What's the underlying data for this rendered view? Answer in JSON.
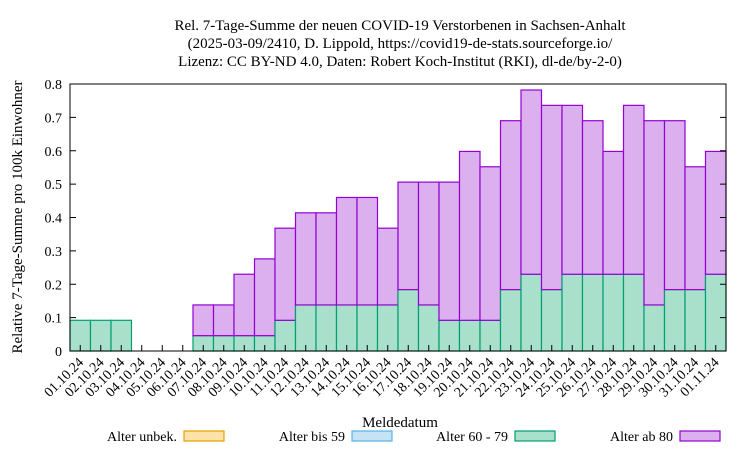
{
  "chart_data": {
    "type": "bar",
    "stacked": true,
    "title_lines": [
      "Rel. 7-Tage-Summe der neuen COVID-19 Verstorbenen in Sachsen-Anhalt",
      "(2025-03-09/2410, D. Lippold, https://covid19-de-stats.sourceforge.io/",
      "Lizenz: CC BY-ND 4.0, Daten: Robert Koch-Institut (RKI), dl-de/by-2-0)"
    ],
    "xlabel": "Meldedatum",
    "ylabel": "Relative 7-Tage-Summe pro 100k Einwohner",
    "ylim": [
      0,
      0.8
    ],
    "yticks": [
      "0",
      "0.1",
      "0.2",
      "0.3",
      "0.4",
      "0.5",
      "0.6",
      "0.7",
      "0.8"
    ],
    "categories": [
      "01.10.24",
      "02.10.24",
      "03.10.24",
      "04.10.24",
      "05.10.24",
      "06.10.24",
      "07.10.24",
      "08.10.24",
      "09.10.24",
      "10.10.24",
      "11.10.24",
      "12.10.24",
      "13.10.24",
      "14.10.24",
      "15.10.24",
      "16.10.24",
      "17.10.24",
      "18.10.24",
      "19.10.24",
      "20.10.24",
      "21.10.24",
      "22.10.24",
      "23.10.24",
      "24.10.24",
      "25.10.24",
      "26.10.24",
      "27.10.24",
      "28.10.24",
      "29.10.24",
      "30.10.24",
      "31.10.24",
      "01.11.24"
    ],
    "series": [
      {
        "name": "Alter unbek.",
        "color": "#fce2a6",
        "stroke": "#e69f00",
        "values": [
          0,
          0,
          0,
          0,
          0,
          0,
          0,
          0,
          0,
          0,
          0,
          0,
          0,
          0,
          0,
          0,
          0,
          0,
          0,
          0,
          0,
          0,
          0,
          0,
          0,
          0,
          0,
          0,
          0,
          0,
          0,
          0
        ]
      },
      {
        "name": "Alter bis 59",
        "color": "#c6e3f5",
        "stroke": "#56b4e9",
        "values": [
          0,
          0,
          0,
          0,
          0,
          0,
          0,
          0,
          0,
          0,
          0,
          0,
          0,
          0,
          0,
          0,
          0,
          0,
          0,
          0,
          0,
          0,
          0,
          0,
          0,
          0,
          0,
          0,
          0,
          0,
          0,
          0
        ]
      },
      {
        "name": "Alter 60 - 79",
        "color": "#a8e0cc",
        "stroke": "#009e73",
        "values": [
          0.092,
          0.092,
          0.092,
          0,
          0,
          0,
          0.046,
          0.046,
          0.046,
          0.046,
          0.092,
          0.138,
          0.138,
          0.138,
          0.138,
          0.138,
          0.184,
          0.138,
          0.092,
          0.092,
          0.092,
          0.184,
          0.23,
          0.184,
          0.23,
          0.23,
          0.23,
          0.23,
          0.138,
          0.184,
          0.184,
          0.23
        ]
      },
      {
        "name": "Alter ab 80",
        "color": "#dcb0ef",
        "stroke": "#9400d3",
        "values": [
          0,
          0,
          0,
          0,
          0,
          0,
          0.092,
          0.092,
          0.184,
          0.23,
          0.276,
          0.276,
          0.276,
          0.322,
          0.322,
          0.23,
          0.322,
          0.368,
          0.414,
          0.506,
          0.46,
          0.506,
          0.552,
          0.552,
          0.506,
          0.46,
          0.368,
          0.506,
          0.552,
          0.506,
          0.368,
          0.368
        ]
      }
    ],
    "legend_position": "bottom",
    "grid": false
  }
}
